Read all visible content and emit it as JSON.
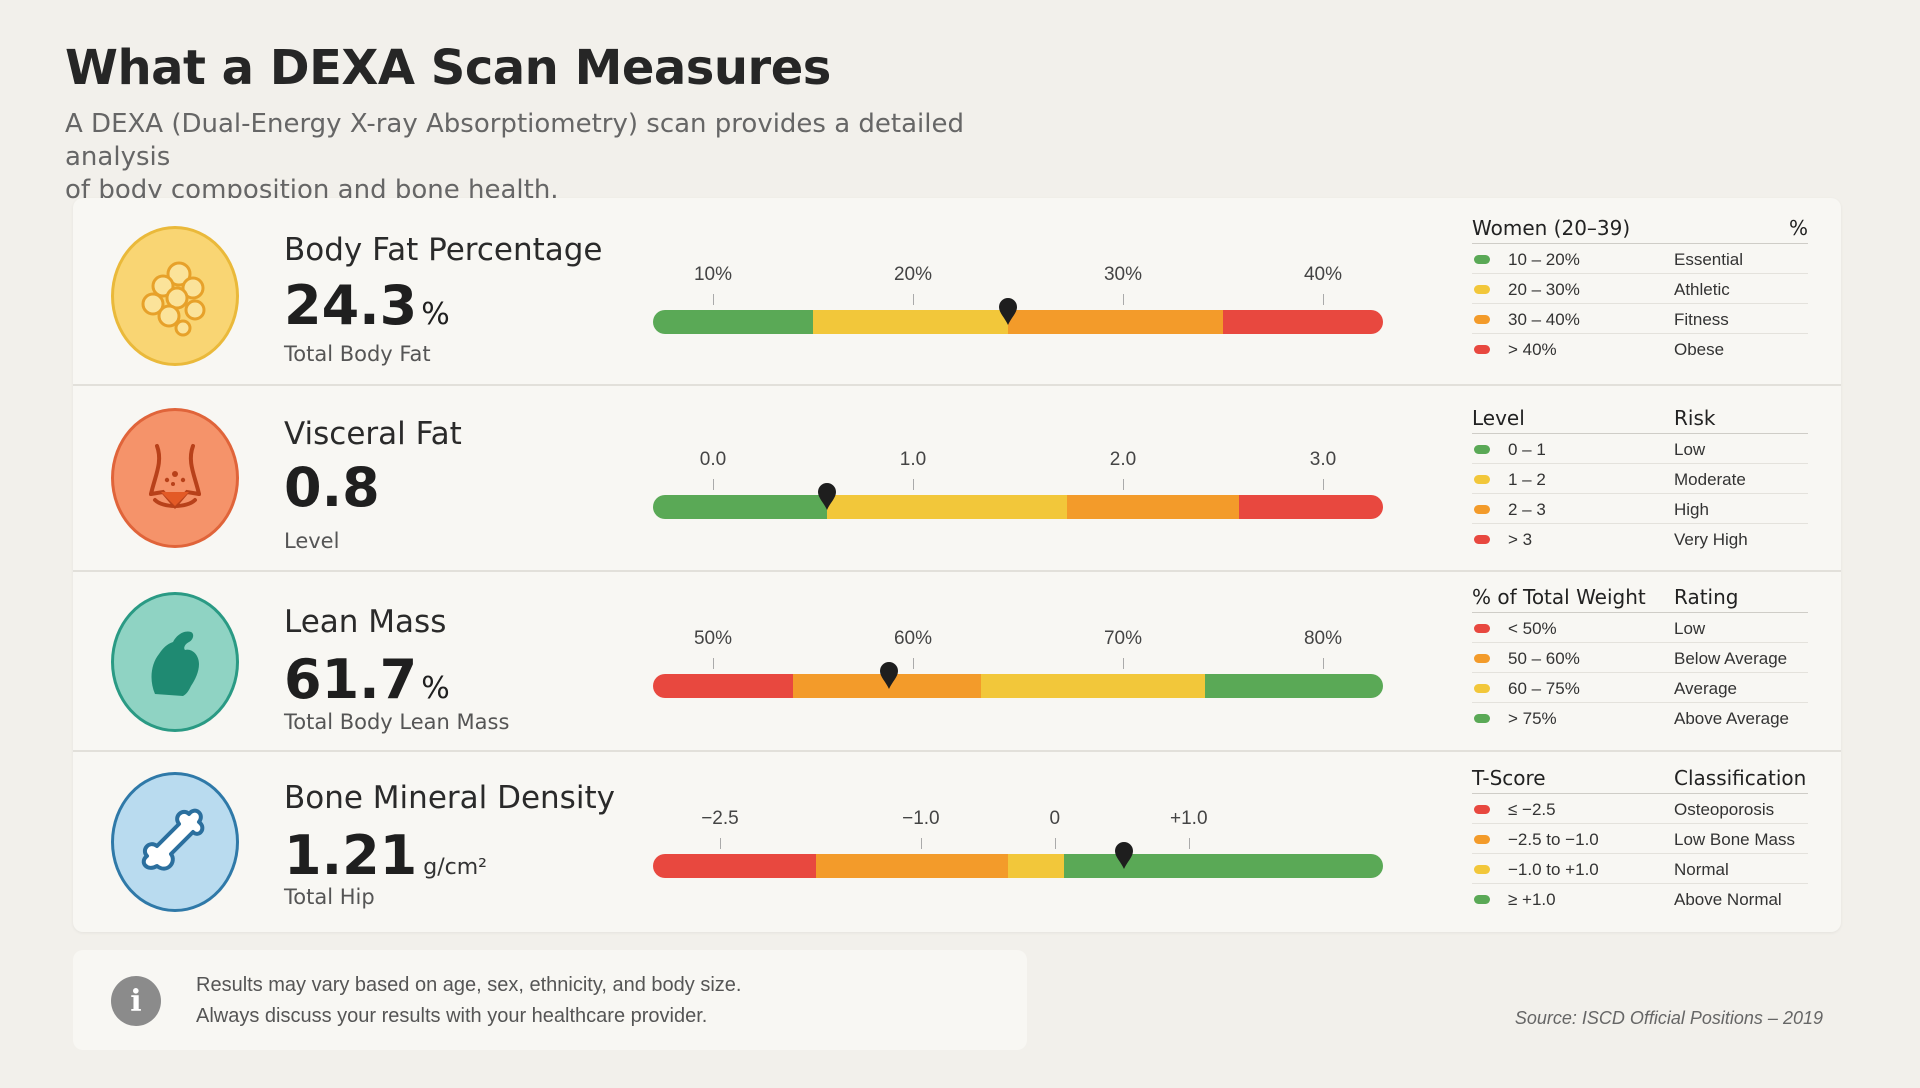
{
  "header": {
    "title": "What a DEXA Scan Measures",
    "subtitle_line1": "A DEXA (Dual-Energy X-ray Absorptiometry) scan provides a detailed analysis",
    "subtitle_line2": "of body composition and bone health."
  },
  "colors": {
    "green": "#5aa956",
    "yellow": "#f2c73a",
    "orange": "#f39b2a",
    "red": "#e8483f"
  },
  "metrics": [
    {
      "name": "Body Fat Percentage",
      "value": "24.3",
      "unit": "%",
      "sub": "Total Body Fat",
      "icon": "fat-cells-icon",
      "ticks": [
        "10%",
        "20%",
        "30%",
        "40%"
      ],
      "scale": {
        "min": 6.0,
        "max": 42.5,
        "tick_values": [
          9,
          19,
          29.5,
          39.5
        ],
        "marker": 23.75
      },
      "segments": [
        {
          "from": 6.0,
          "to": 14.0,
          "color": "green"
        },
        {
          "from": 14.0,
          "to": 23.75,
          "color": "yellow"
        },
        {
          "from": 23.75,
          "to": 34.5,
          "color": "orange"
        },
        {
          "from": 34.5,
          "to": 42.5,
          "color": "red"
        }
      ],
      "legend": {
        "col1": "Women (20–39)",
        "col2": "%",
        "rows": [
          {
            "color": "green",
            "range": "10 – 20%",
            "label": "Essential"
          },
          {
            "color": "yellow",
            "range": "20 – 30%",
            "label": "Athletic"
          },
          {
            "color": "orange",
            "range": "30 – 40%",
            "label": "Fitness"
          },
          {
            "color": "red",
            "range": "> 40%",
            "label": "Obese"
          }
        ]
      }
    },
    {
      "name": "Visceral Fat",
      "value": "0.8",
      "unit": "",
      "sub": "Level",
      "icon": "torso-icon",
      "ticks": [
        "0.0",
        "1.0",
        "2.0",
        "3.0"
      ],
      "scale": {
        "min": -0.3,
        "max": 3.35,
        "tick_values": [
          0.0,
          1.0,
          2.05,
          3.05
        ],
        "marker": 0.57
      },
      "segments": [
        {
          "from": -0.3,
          "to": 0.57,
          "color": "green"
        },
        {
          "from": 0.57,
          "to": 1.77,
          "color": "yellow"
        },
        {
          "from": 1.77,
          "to": 2.63,
          "color": "orange"
        },
        {
          "from": 2.63,
          "to": 3.35,
          "color": "red"
        }
      ],
      "legend": {
        "col1": "Level",
        "col2": "Risk",
        "rows": [
          {
            "color": "green",
            "range": "0 – 1",
            "label": "Low"
          },
          {
            "color": "yellow",
            "range": "1 – 2",
            "label": "Moderate"
          },
          {
            "color": "orange",
            "range": "2 – 3",
            "label": "High"
          },
          {
            "color": "red",
            "range": "> 3",
            "label": "Very High"
          }
        ]
      }
    },
    {
      "name": "Lean Mass",
      "value": "61.7",
      "unit": "%",
      "sub": "Total Body Lean Mass",
      "icon": "flexed-arm-icon",
      "ticks": [
        "50%",
        "60%",
        "70%",
        "80%"
      ],
      "scale": {
        "min": 47.0,
        "max": 83.5,
        "tick_values": [
          50,
          60,
          70.5,
          80.5
        ],
        "marker": 58.8
      },
      "segments": [
        {
          "from": 47.0,
          "to": 54.0,
          "color": "red"
        },
        {
          "from": 54.0,
          "to": 63.4,
          "color": "orange"
        },
        {
          "from": 63.4,
          "to": 74.6,
          "color": "yellow"
        },
        {
          "from": 74.6,
          "to": 83.5,
          "color": "green"
        }
      ],
      "legend": {
        "col1": "% of Total Weight",
        "col2": "Rating",
        "rows": [
          {
            "color": "red",
            "range": "< 50%",
            "label": "Low"
          },
          {
            "color": "orange",
            "range": "50 – 60%",
            "label": "Below Average"
          },
          {
            "color": "yellow",
            "range": "60 – 75%",
            "label": "Average"
          },
          {
            "color": "green",
            "range": "> 75%",
            "label": "Above Average"
          }
        ]
      }
    },
    {
      "name": "Bone Mineral Density",
      "value": "1.21",
      "unit": "g/cm²",
      "sub": "Total Hip",
      "icon": "bone-icon",
      "ticks": [
        "−2.5",
        "−1.0",
        "0",
        "+1.0"
      ],
      "scale": {
        "min": -3.0,
        "max": 2.45,
        "tick_values": [
          -2.5,
          -1.0,
          0.0,
          1.0
        ],
        "marker": 0.52
      },
      "segments": [
        {
          "from": -3.0,
          "to": -1.78,
          "color": "red"
        },
        {
          "from": -1.78,
          "to": -0.35,
          "color": "orange"
        },
        {
          "from": -0.35,
          "to": 0.07,
          "color": "yellow"
        },
        {
          "from": 0.07,
          "to": 2.45,
          "color": "green"
        }
      ],
      "legend": {
        "col1": "T-Score",
        "col2": "Classification",
        "rows": [
          {
            "color": "red",
            "range": "≤ −2.5",
            "label": "Osteoporosis"
          },
          {
            "color": "orange",
            "range": "−2.5 to −1.0",
            "label": "Low Bone Mass"
          },
          {
            "color": "yellow",
            "range": "−1.0 to +1.0",
            "label": "Normal"
          },
          {
            "color": "green",
            "range": "≥ +1.0",
            "label": "Above Normal"
          }
        ]
      }
    }
  ],
  "note": {
    "line1": "Results may vary based on age, sex, ethnicity, and body size.",
    "line2": "Always discuss your results with your healthcare provider."
  },
  "source": "Source: ISCD Official Positions – 2019"
}
